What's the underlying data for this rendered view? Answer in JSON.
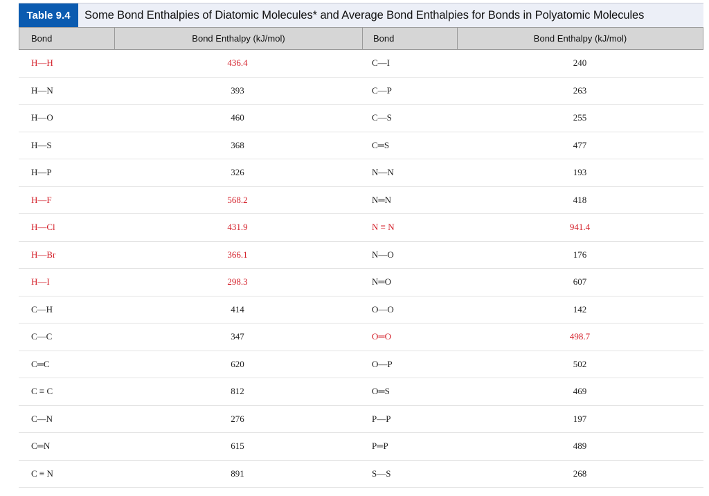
{
  "title": {
    "table_number": "Table 9.4",
    "text": "Some Bond Enthalpies of Diatomic Molecules* and Average Bond Enthalpies for Bonds in Polyatomic Molecules"
  },
  "headers": [
    "Bond",
    "Bond Enthalpy (kJ/mol)",
    "Bond",
    "Bond Enthalpy (kJ/mol)"
  ],
  "highlight_color": "#d4202a",
  "rows": [
    {
      "bond1": "H—H",
      "val1": "436.4",
      "bond2": "C—I",
      "val2": "240",
      "red1": true,
      "red2": false
    },
    {
      "bond1": "H—N",
      "val1": "393",
      "bond2": "C—P",
      "val2": "263",
      "red1": false,
      "red2": false
    },
    {
      "bond1": "H—O",
      "val1": "460",
      "bond2": "C—S",
      "val2": "255",
      "red1": false,
      "red2": false
    },
    {
      "bond1": "H—S",
      "val1": "368",
      "bond2": "C═S",
      "val2": "477",
      "red1": false,
      "red2": false
    },
    {
      "bond1": "H—P",
      "val1": "326",
      "bond2": "N—N",
      "val2": "193",
      "red1": false,
      "red2": false
    },
    {
      "bond1": "H—F",
      "val1": "568.2",
      "bond2": "N═N",
      "val2": "418",
      "red1": true,
      "red2": false
    },
    {
      "bond1": "H—Cl",
      "val1": "431.9",
      "bond2": "N ≡ N",
      "val2": "941.4",
      "red1": true,
      "red2": true
    },
    {
      "bond1": "H—Br",
      "val1": "366.1",
      "bond2": "N—O",
      "val2": "176",
      "red1": true,
      "red2": false
    },
    {
      "bond1": "H—I",
      "val1": "298.3",
      "bond2": "N═O",
      "val2": "607",
      "red1": true,
      "red2": false
    },
    {
      "bond1": "C—H",
      "val1": "414",
      "bond2": "O—O",
      "val2": "142",
      "red1": false,
      "red2": false
    },
    {
      "bond1": "C—C",
      "val1": "347",
      "bond2": "O═O",
      "val2": "498.7",
      "red1": false,
      "red2": true
    },
    {
      "bond1": "C═C",
      "val1": "620",
      "bond2": "O—P",
      "val2": "502",
      "red1": false,
      "red2": false
    },
    {
      "bond1": "C ≡ C",
      "val1": "812",
      "bond2": "O═S",
      "val2": "469",
      "red1": false,
      "red2": false
    },
    {
      "bond1": "C—N",
      "val1": "276",
      "bond2": "P—P",
      "val2": "197",
      "red1": false,
      "red2": false
    },
    {
      "bond1": "C═N",
      "val1": "615",
      "bond2": "P═P",
      "val2": "489",
      "red1": false,
      "red2": false
    },
    {
      "bond1": "C ≡ N",
      "val1": "891",
      "bond2": "S—S",
      "val2": "268",
      "red1": false,
      "red2": false
    }
  ]
}
